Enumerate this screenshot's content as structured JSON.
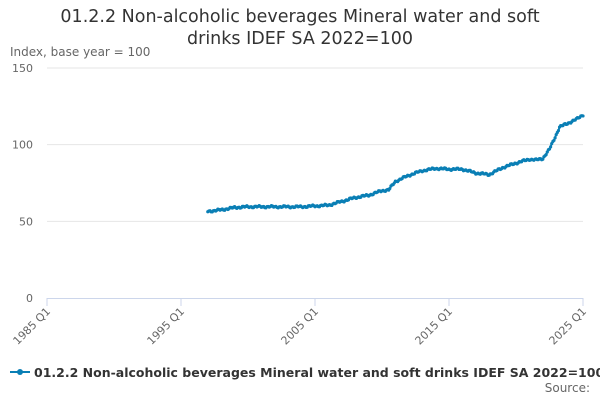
{
  "title_lines": [
    "01.2.2 Non-alcoholic beverages Mineral water and soft",
    "drinks IDEF SA 2022=100"
  ],
  "credits": "Source:",
  "colors": {
    "series": "#0a7fb5",
    "grid": "#e6e6e6",
    "axis": "#ccd6eb"
  },
  "chart_data": {
    "type": "line",
    "title": "01.2.2 Non-alcoholic beverages Mineral water and soft drinks IDEF SA 2022=100",
    "xlabel": "",
    "ylabel": "Index, base year = 100",
    "xlim": [
      "1985-01",
      "2025-01"
    ],
    "ylim": [
      0,
      150
    ],
    "x_ticks": [
      "1985 Q1",
      "1995 Q1",
      "2005 Q1",
      "2015 Q1",
      "2025 Q1"
    ],
    "y_ticks": [
      0,
      50,
      100,
      150
    ],
    "grid": true,
    "legend_position": "bottom",
    "series": [
      {
        "name": "01.2.2 Non-alcoholic beverages Mineral water and soft drinks IDEF SA 2022=100",
        "frequency": "monthly",
        "start": "1997-01",
        "end": "2025-01",
        "anchors": [
          [
            "1997-01",
            56.5
          ],
          [
            "1998-01",
            57.5
          ],
          [
            "1999-01",
            59.0
          ],
          [
            "2000-01",
            59.5
          ],
          [
            "2002-01",
            59.5
          ],
          [
            "2004-01",
            59.5
          ],
          [
            "2005-01",
            60.0
          ],
          [
            "2006-01",
            60.5
          ],
          [
            "2007-01",
            63.0
          ],
          [
            "2008-01",
            65.5
          ],
          [
            "2009-01",
            67.0
          ],
          [
            "2010-01",
            70.0
          ],
          [
            "2010-07",
            70.5
          ],
          [
            "2011-01",
            76.0
          ],
          [
            "2011-07",
            78.0
          ],
          [
            "2012-01",
            80.0
          ],
          [
            "2013-01",
            83.0
          ],
          [
            "2014-01",
            84.5
          ],
          [
            "2015-01",
            84.0
          ],
          [
            "2016-01",
            84.0
          ],
          [
            "2017-01",
            81.5
          ],
          [
            "2018-01",
            80.5
          ],
          [
            "2019-01",
            85.0
          ],
          [
            "2020-01",
            88.0
          ],
          [
            "2021-01",
            90.5
          ],
          [
            "2021-07",
            90.0
          ],
          [
            "2022-01",
            91.0
          ],
          [
            "2022-07",
            97.0
          ],
          [
            "2023-01",
            106.5
          ],
          [
            "2023-04",
            111.5
          ],
          [
            "2024-01",
            114.5
          ],
          [
            "2024-07",
            116.5
          ],
          [
            "2025-01",
            119.5
          ]
        ]
      }
    ]
  }
}
